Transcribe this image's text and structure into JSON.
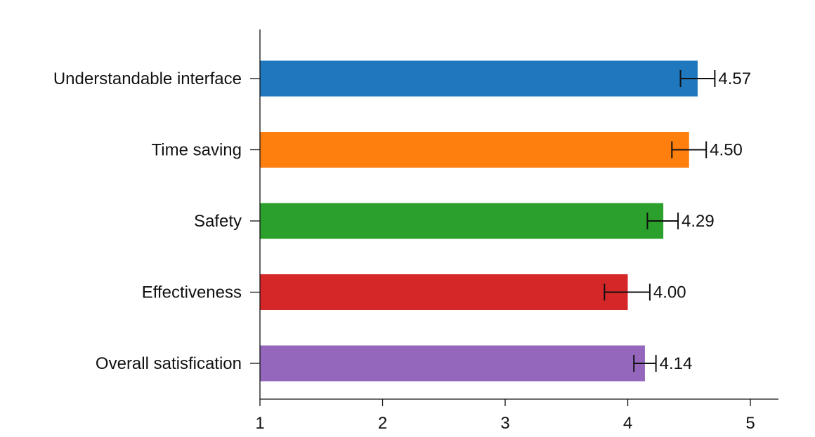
{
  "chart_data": {
    "type": "bar",
    "orientation": "horizontal",
    "categories": [
      "Understandable interface",
      "Time saving",
      "Safety",
      "Effectiveness",
      "Overall satisfication"
    ],
    "values": [
      4.57,
      4.5,
      4.29,
      4.0,
      4.14
    ],
    "value_labels": [
      "4.57",
      "4.50",
      "4.29",
      "4.00",
      "4.14"
    ],
    "error_low": [
      4.43,
      4.36,
      4.16,
      3.81,
      4.05
    ],
    "error_high": [
      4.71,
      4.64,
      4.41,
      4.18,
      4.23
    ],
    "colors": [
      "#1f77bd",
      "#ff7f0e",
      "#2ca02c",
      "#d62728",
      "#9467bd"
    ],
    "xlim": [
      1,
      5.23
    ],
    "xticks": [
      "1",
      "2",
      "3",
      "4",
      "5"
    ],
    "title": "",
    "xlabel": "",
    "ylabel": "",
    "grid": false,
    "legend": "none"
  }
}
